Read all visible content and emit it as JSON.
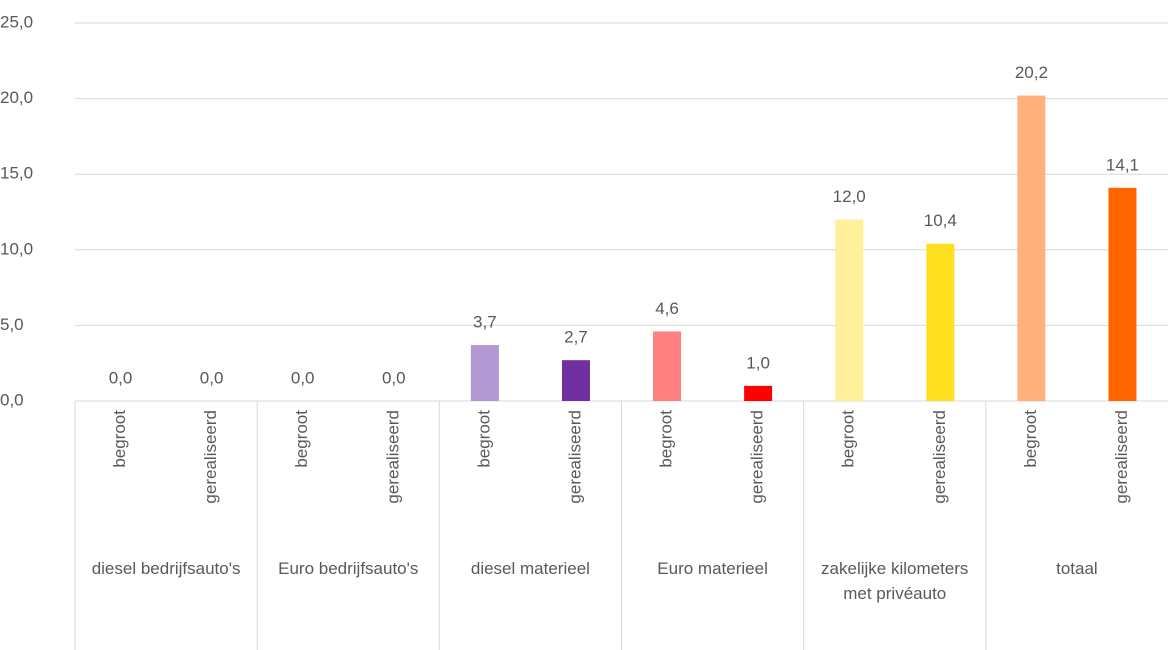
{
  "chart_data": {
    "type": "bar",
    "groups": [
      "diesel bedrijfsauto's",
      "Euro bedrijfsauto's",
      "diesel materieel",
      "Euro materieel",
      "zakelijke kilometers met privéauto",
      "totaal"
    ],
    "categories": [
      "begroot",
      "gerealiseerd",
      "begroot",
      "gerealiseerd",
      "begroot",
      "gerealiseerd",
      "begroot",
      "gerealiseerd",
      "begroot",
      "gerealiseerd",
      "begroot",
      "gerealiseerd"
    ],
    "values": [
      0,
      0,
      0,
      0,
      3.7,
      2.7,
      4.6,
      1.0,
      12.0,
      10.4,
      20.2,
      14.1
    ],
    "value_labels": [
      "0,0",
      "0,0",
      "0,0",
      "0,0",
      "3,7",
      "2,7",
      "4,6",
      "1,0",
      "12,0",
      "10,4",
      "20,2",
      "14,1"
    ],
    "colors": [
      null,
      null,
      null,
      null,
      "#b399d4",
      "#7030a0",
      "#ff8080",
      "#ff0000",
      "#fff09a",
      "#ffe021",
      "#ffb07c",
      "#ff6600"
    ],
    "ylim": [
      0,
      25
    ],
    "yticks": [
      {
        "value": 0,
        "label": "0,0"
      },
      {
        "value": 5,
        "label": "5,0"
      },
      {
        "value": 10,
        "label": "10,0"
      },
      {
        "value": 15,
        "label": "15,0"
      },
      {
        "value": 20,
        "label": "20,0"
      },
      {
        "value": 25,
        "label": "25,0"
      }
    ],
    "grid": true
  }
}
